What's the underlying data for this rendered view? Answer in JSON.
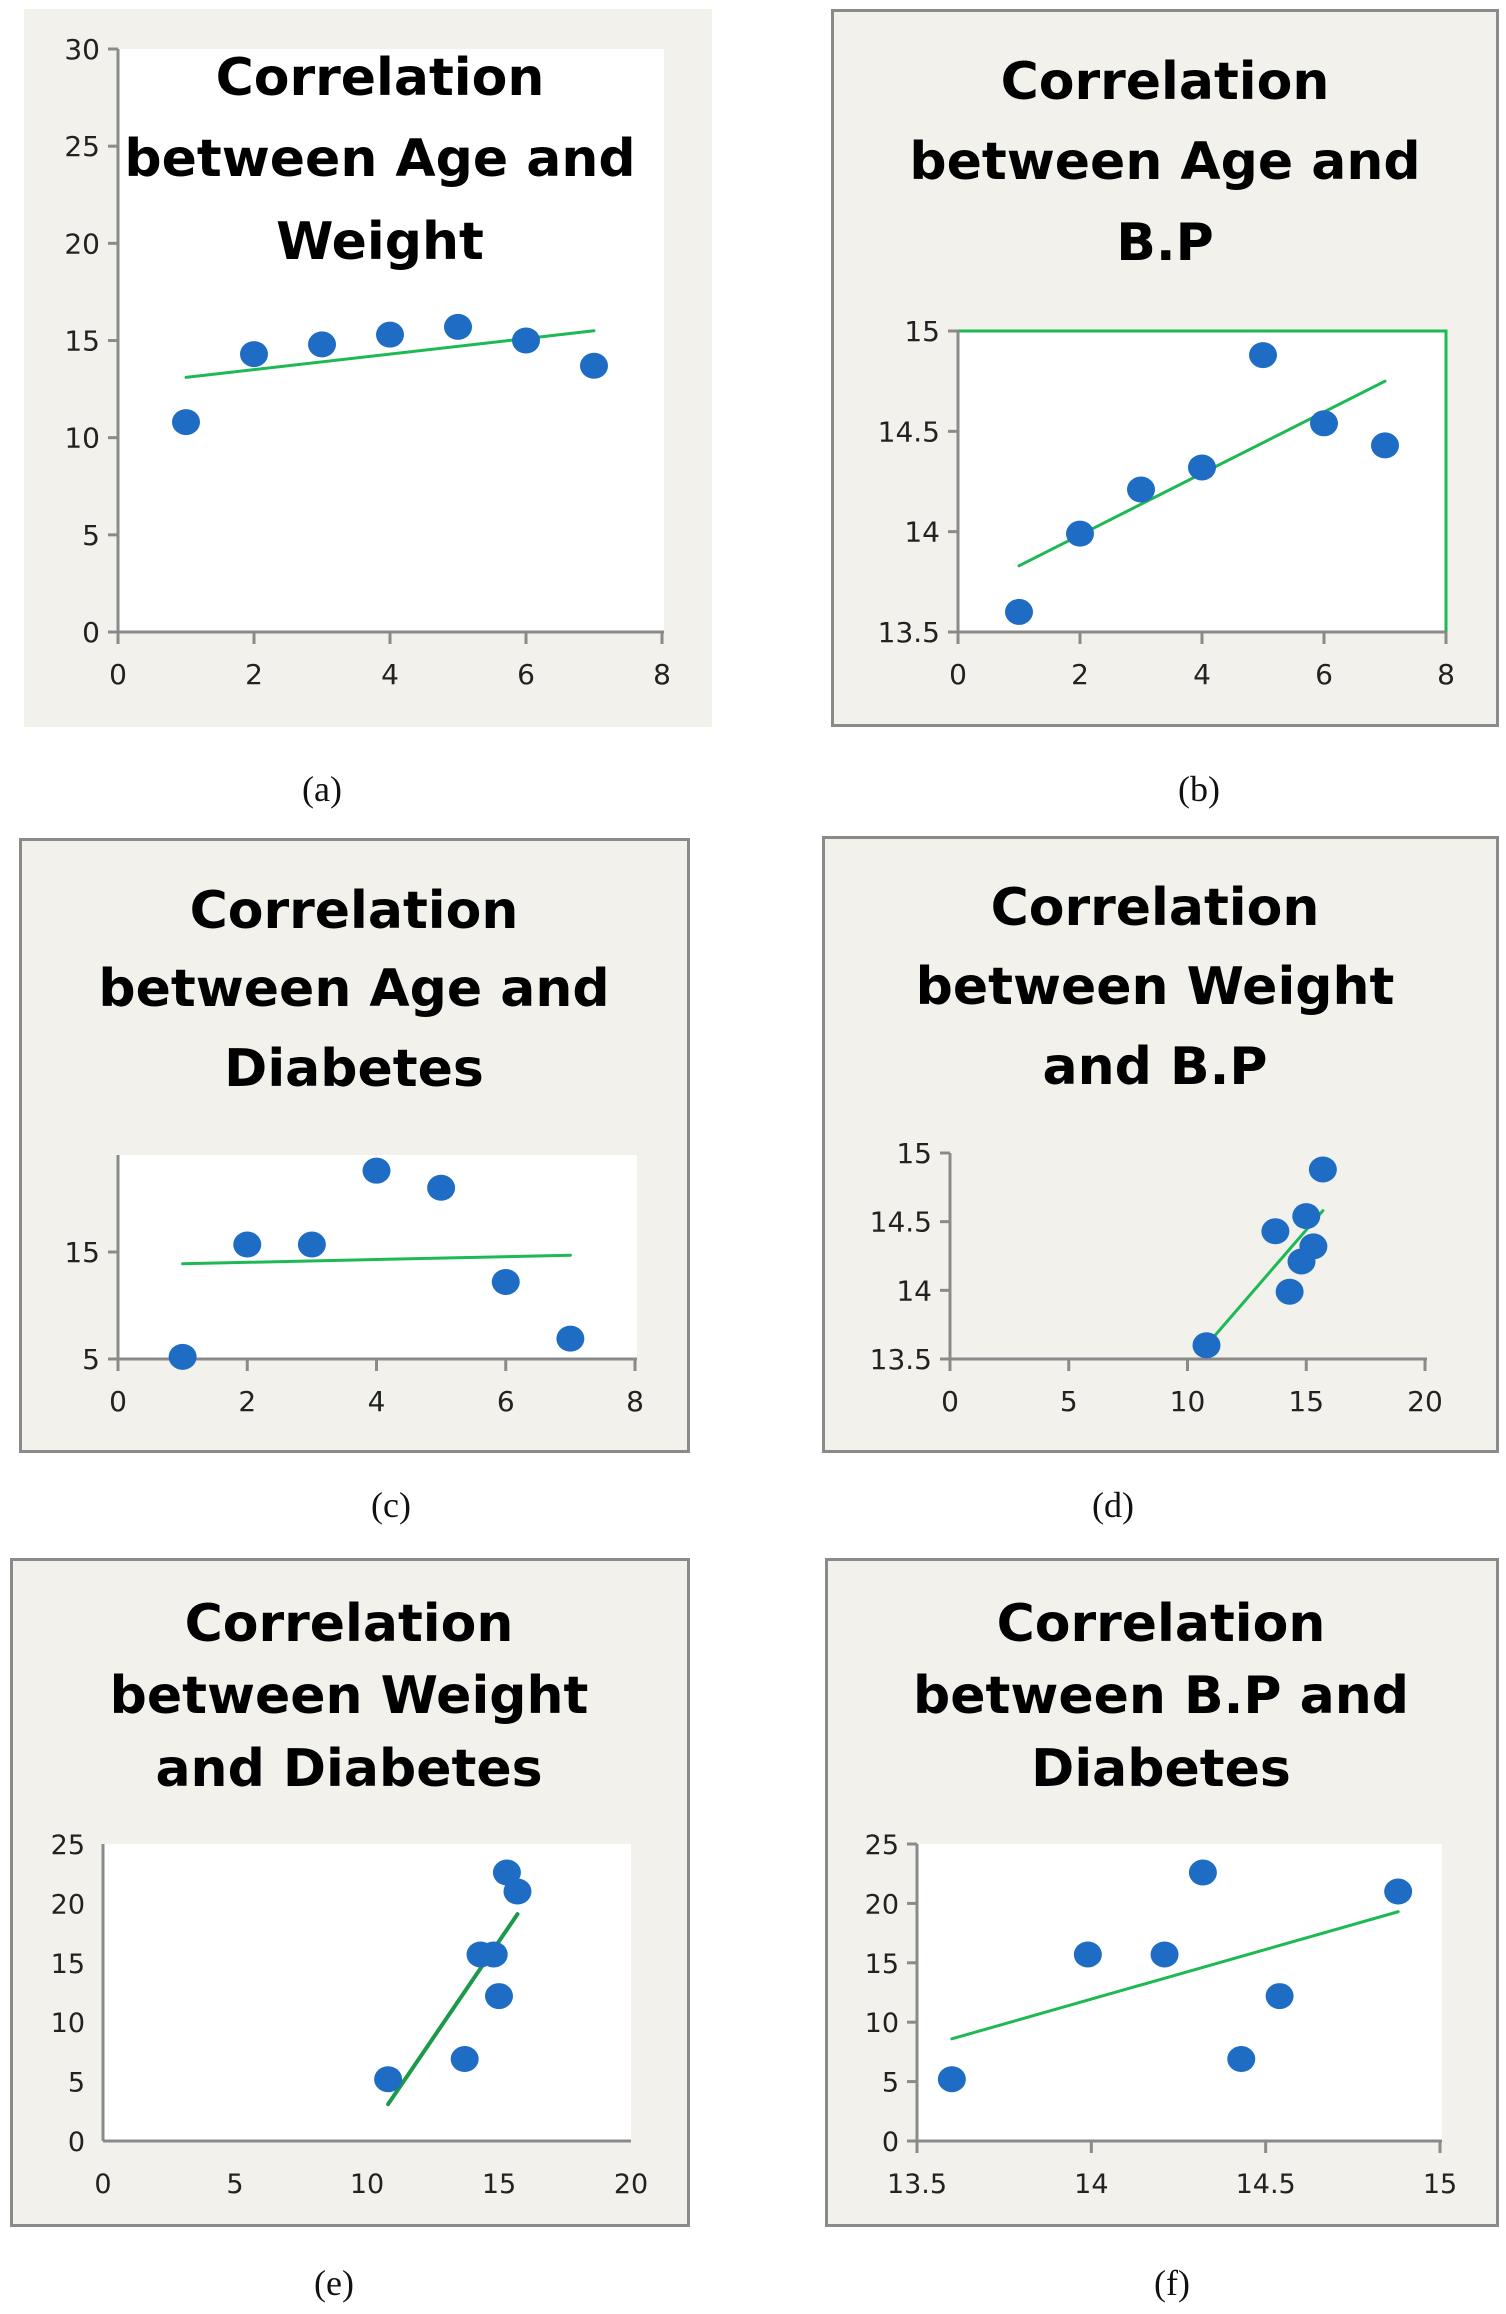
{
  "figure": {
    "captions": [
      "(a)",
      "(b)",
      "(c)",
      "(d)",
      "(e)",
      "(f)"
    ]
  },
  "colors": {
    "panel_background": "#f2f1ec",
    "plot_background": "#ffffff",
    "axis": "#8a8a8a",
    "marker": "#1f6cc4",
    "trendline": "#1db954",
    "trendline_dark": "#1a9a4a"
  },
  "chart_data": [
    {
      "id": "a",
      "type": "scatter",
      "title": [
        "Correlation",
        "between Age and",
        "Weight"
      ],
      "xlabel": "",
      "ylabel": "",
      "xlim": [
        0,
        8
      ],
      "ylim": [
        0,
        30
      ],
      "xticks": [
        0,
        2,
        4,
        6,
        8
      ],
      "yticks": [
        0,
        5,
        10,
        15,
        20,
        25,
        30
      ],
      "xtick_labels": [
        "0",
        "2",
        "4",
        "6",
        "8"
      ],
      "ytick_labels": [
        "0",
        "5",
        "10",
        "15",
        "20",
        "25",
        "30"
      ],
      "grid": false,
      "points": [
        [
          1,
          10.8
        ],
        [
          2,
          14.3
        ],
        [
          3,
          14.8
        ],
        [
          4,
          15.3
        ],
        [
          5,
          15.7
        ],
        [
          6,
          15.0
        ],
        [
          7,
          13.7
        ]
      ],
      "trendline": [
        [
          1,
          13.1
        ],
        [
          7,
          15.5
        ]
      ],
      "caption": "(a)"
    },
    {
      "id": "b",
      "type": "scatter",
      "title": [
        "Correlation",
        "between Age and",
        "B.P"
      ],
      "xlabel": "",
      "ylabel": "",
      "xlim": [
        0,
        8
      ],
      "ylim": [
        13.5,
        15
      ],
      "xticks": [
        0,
        2,
        4,
        6,
        8
      ],
      "yticks": [
        13.5,
        14,
        14.5,
        15
      ],
      "xtick_labels": [
        "0",
        "2",
        "4",
        "6",
        "8"
      ],
      "ytick_labels": [
        "13.5",
        "14",
        "14.5",
        "15"
      ],
      "grid": false,
      "points": [
        [
          1,
          13.6
        ],
        [
          2,
          13.99
        ],
        [
          3,
          14.21
        ],
        [
          4,
          14.32
        ],
        [
          5,
          14.88
        ],
        [
          6,
          14.54
        ],
        [
          7,
          14.43
        ]
      ],
      "trendline": [
        [
          1,
          13.83
        ],
        [
          7,
          14.75
        ]
      ],
      "caption": "(b)"
    },
    {
      "id": "c",
      "type": "scatter",
      "title": [
        "Correlation",
        "between Age and",
        "Diabetes"
      ],
      "xlabel": "",
      "ylabel": "",
      "xlim": [
        0,
        8
      ],
      "ylim": [
        5,
        24
      ],
      "xticks": [
        0,
        2,
        4,
        6,
        8
      ],
      "yticks": [
        5,
        15
      ],
      "xtick_labels": [
        "0",
        "2",
        "4",
        "6",
        "8"
      ],
      "ytick_labels": [
        "5",
        "15"
      ],
      "grid": false,
      "points": [
        [
          1,
          5.2
        ],
        [
          2,
          15.7
        ],
        [
          3,
          15.7
        ],
        [
          4,
          22.6
        ],
        [
          5,
          21.0
        ],
        [
          6,
          12.2
        ],
        [
          7,
          6.9
        ]
      ],
      "trendline": [
        [
          1,
          13.9
        ],
        [
          7,
          14.7
        ]
      ],
      "caption": "(c)"
    },
    {
      "id": "d",
      "type": "scatter",
      "title": [
        "Correlation",
        "between Weight",
        "and B.P"
      ],
      "xlabel": "",
      "ylabel": "",
      "xlim": [
        0,
        20
      ],
      "ylim": [
        13.5,
        15
      ],
      "xticks": [
        0,
        5,
        10,
        15,
        20
      ],
      "yticks": [
        13.5,
        14,
        14.5,
        15
      ],
      "xtick_labels": [
        "0",
        "5",
        "10",
        "15",
        "20"
      ],
      "ytick_labels": [
        "13.5",
        "14",
        "14.5",
        "15"
      ],
      "grid": false,
      "points": [
        [
          10.8,
          13.6
        ],
        [
          14.3,
          13.99
        ],
        [
          14.8,
          14.21
        ],
        [
          15.3,
          14.32
        ],
        [
          15.7,
          14.88
        ],
        [
          15.0,
          14.54
        ],
        [
          13.7,
          14.43
        ]
      ],
      "trendline": [
        [
          10.8,
          13.6
        ],
        [
          15.7,
          14.58
        ]
      ],
      "caption": "(d)"
    },
    {
      "id": "e",
      "type": "scatter",
      "title": [
        "Correlation",
        "between Weight",
        "and Diabetes"
      ],
      "xlabel": "",
      "ylabel": "",
      "xlim": [
        0,
        20
      ],
      "ylim": [
        0,
        25
      ],
      "xticks": [
        0,
        5,
        10,
        15,
        20
      ],
      "yticks": [
        0,
        5,
        10,
        15,
        20,
        25
      ],
      "xtick_labels": [
        "0",
        "5",
        "10",
        "15",
        "20"
      ],
      "ytick_labels": [
        "0",
        "5",
        "10",
        "15",
        "20",
        "25"
      ],
      "grid": false,
      "points": [
        [
          10.8,
          5.2
        ],
        [
          14.3,
          15.7
        ],
        [
          14.8,
          15.7
        ],
        [
          15.3,
          22.6
        ],
        [
          15.7,
          21.0
        ],
        [
          15.0,
          12.2
        ],
        [
          13.7,
          6.9
        ]
      ],
      "trendline": [
        [
          10.8,
          3.1
        ],
        [
          15.7,
          19.1
        ]
      ],
      "caption": "(e)"
    },
    {
      "id": "f",
      "type": "scatter",
      "title": [
        "Correlation",
        "between B.P and",
        "Diabetes"
      ],
      "xlabel": "",
      "ylabel": "",
      "xlim": [
        13.5,
        15
      ],
      "ylim": [
        0,
        25
      ],
      "xticks": [
        13.5,
        14,
        14.5,
        15
      ],
      "yticks": [
        0,
        5,
        10,
        15,
        20,
        25
      ],
      "xtick_labels": [
        "13.5",
        "14",
        "14.5",
        "15"
      ],
      "ytick_labels": [
        "0",
        "5",
        "10",
        "15",
        "20",
        "25"
      ],
      "grid": false,
      "points": [
        [
          13.6,
          5.2
        ],
        [
          13.99,
          15.7
        ],
        [
          14.21,
          15.7
        ],
        [
          14.32,
          22.6
        ],
        [
          14.88,
          21.0
        ],
        [
          14.54,
          12.2
        ],
        [
          14.43,
          6.9
        ]
      ],
      "trendline": [
        [
          13.6,
          8.6
        ],
        [
          14.88,
          19.3
        ]
      ],
      "caption": "(f)"
    }
  ]
}
